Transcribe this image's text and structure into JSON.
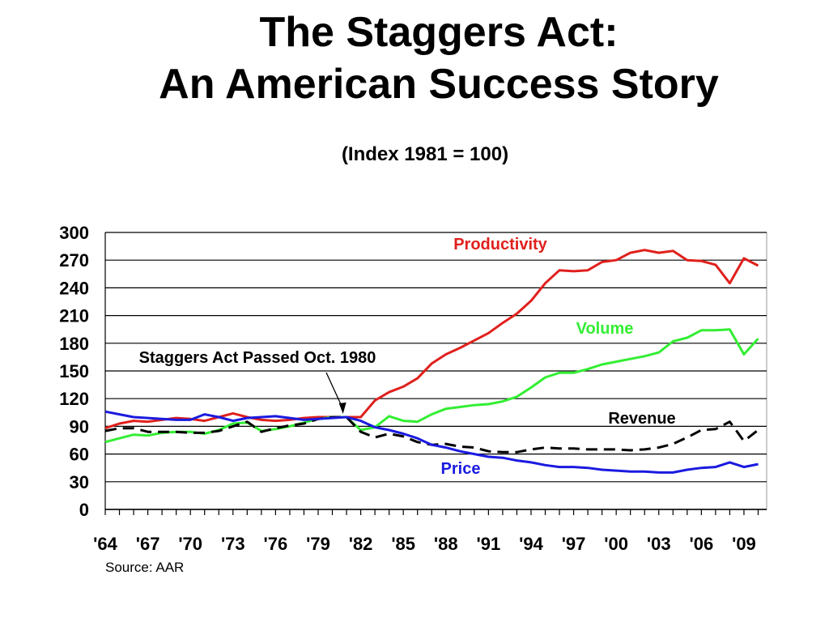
{
  "title_line1": "The Staggers Act:",
  "title_line2": "An American Success Story",
  "subtitle": "(Index 1981 = 100)",
  "source": "Source:  AAR",
  "chart_data": {
    "type": "line",
    "x": [
      1964,
      1965,
      1966,
      1967,
      1968,
      1969,
      1970,
      1971,
      1972,
      1973,
      1974,
      1975,
      1976,
      1977,
      1978,
      1979,
      1980,
      1981,
      1982,
      1983,
      1984,
      1985,
      1986,
      1987,
      1988,
      1989,
      1990,
      1991,
      1992,
      1993,
      1994,
      1995,
      1996,
      1997,
      1998,
      1999,
      2000,
      2001,
      2002,
      2003,
      2004,
      2005,
      2006,
      2007,
      2008,
      2009,
      2010
    ],
    "xticks": [
      1964,
      1967,
      1970,
      1973,
      1976,
      1979,
      1982,
      1985,
      1988,
      1991,
      1994,
      1997,
      2000,
      2003,
      2006,
      2009
    ],
    "xticklabels": [
      "'64",
      "'67",
      "'70",
      "'73",
      "'76",
      "'79",
      "'82",
      "'85",
      "'88",
      "'91",
      "'94",
      "'97",
      "'00",
      "'03",
      "'06",
      "'09"
    ],
    "ylim": [
      0,
      300
    ],
    "yticks": [
      0,
      30,
      60,
      90,
      120,
      150,
      180,
      210,
      240,
      270,
      300
    ],
    "grid": true,
    "series": [
      {
        "name": "Productivity",
        "color": "#e0201c",
        "dash": false,
        "values": [
          88,
          93,
          96,
          95,
          97,
          99,
          98,
          96,
          100,
          104,
          100,
          97,
          96,
          97,
          99,
          100,
          100,
          100,
          100,
          118,
          127,
          133,
          142,
          158,
          168,
          175,
          183,
          191,
          202,
          212,
          226,
          245,
          259,
          258,
          259,
          268,
          270,
          278,
          281,
          278,
          280,
          270,
          269,
          265,
          245,
          272,
          264
        ]
      },
      {
        "name": "Volume",
        "color": "#33ee33",
        "dash": false,
        "values": [
          73,
          77,
          81,
          80,
          83,
          84,
          84,
          82,
          86,
          93,
          94,
          85,
          87,
          90,
          94,
          98,
          100,
          100,
          86,
          89,
          101,
          96,
          95,
          103,
          109,
          111,
          113,
          114,
          117,
          122,
          132,
          143,
          148,
          148,
          152,
          157,
          160,
          163,
          166,
          170,
          182,
          186,
          194,
          194,
          195,
          168,
          185
        ]
      },
      {
        "name": "Revenue",
        "color": "#000000",
        "dash": true,
        "values": [
          85,
          88,
          88,
          84,
          84,
          84,
          83,
          83,
          85,
          90,
          95,
          84,
          88,
          91,
          93,
          98,
          100,
          100,
          84,
          78,
          82,
          79,
          73,
          70,
          71,
          68,
          67,
          63,
          62,
          62,
          65,
          67,
          66,
          66,
          65,
          65,
          65,
          64,
          65,
          67,
          71,
          78,
          86,
          87,
          95,
          74,
          86
        ]
      },
      {
        "name": "Price",
        "color": "#1a1ae0",
        "dash": false,
        "values": [
          106,
          103,
          100,
          99,
          98,
          97,
          97,
          103,
          100,
          96,
          99,
          100,
          101,
          99,
          97,
          98,
          99,
          100,
          96,
          89,
          86,
          82,
          77,
          70,
          67,
          63,
          60,
          57,
          56,
          53,
          51,
          48,
          46,
          46,
          45,
          43,
          42,
          41,
          41,
          40,
          40,
          43,
          45,
          46,
          51,
          46,
          49
        ]
      }
    ],
    "annotations": [
      {
        "text": "Staggers Act Passed Oct. 1980",
        "arrow_to": [
          1980.75,
          100
        ]
      }
    ]
  }
}
